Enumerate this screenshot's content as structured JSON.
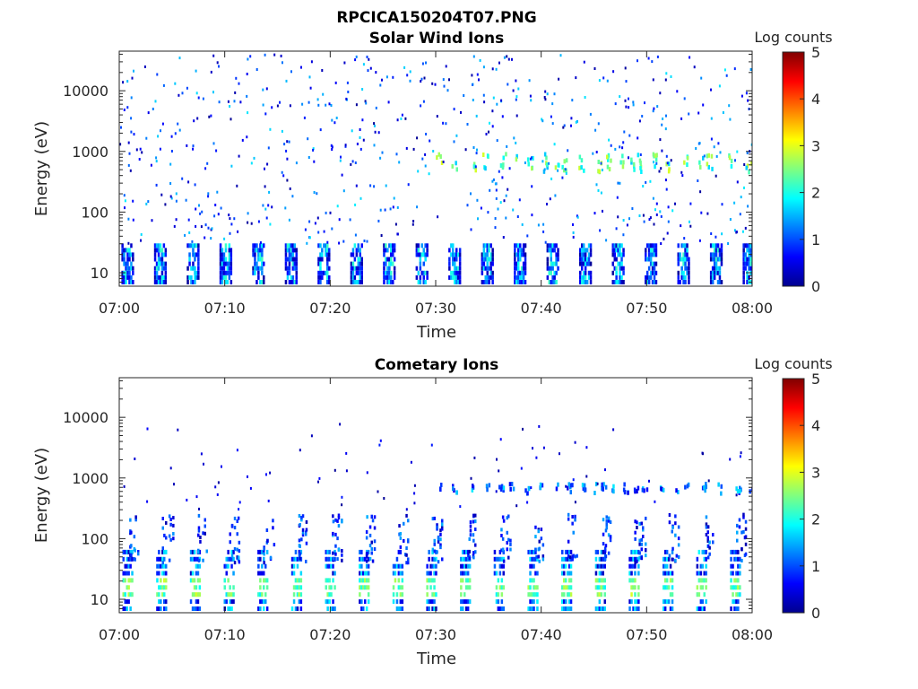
{
  "figure": {
    "main_title": "RPCICA150204T07.PNG"
  },
  "colorbar": {
    "label": "Log counts",
    "ticks": [
      "0",
      "1",
      "2",
      "3",
      "4",
      "5"
    ],
    "range": [
      0,
      5
    ],
    "colormap": "jet"
  },
  "panels": [
    {
      "title": "Solar Wind Ions",
      "xlabel": "Time",
      "ylabel": "Energy (eV)",
      "xticks": [
        "07:00",
        "07:10",
        "07:20",
        "07:30",
        "07:40",
        "07:50",
        "08:00"
      ],
      "yticks": [
        "10",
        "100",
        "1000",
        "10000"
      ]
    },
    {
      "title": "Cometary Ions",
      "xlabel": "Time",
      "ylabel": "Energy (eV)",
      "xticks": [
        "07:00",
        "07:10",
        "07:20",
        "07:30",
        "07:40",
        "07:50",
        "08:00"
      ],
      "yticks": [
        "10",
        "100",
        "1000",
        "10000"
      ]
    }
  ],
  "chart_data": [
    {
      "type": "heatmap",
      "title": "Solar Wind Ions",
      "xlabel": "Time",
      "ylabel": "Energy (eV)",
      "x_range": [
        "07:00",
        "08:00"
      ],
      "y_range_eV": [
        6,
        45000
      ],
      "y_scale": "log",
      "z_label": "Log counts",
      "z_range": [
        0,
        5
      ],
      "features": {
        "low_energy_bursts": {
          "energy_eV": [
            7,
            28
          ],
          "log_counts": [
            0.3,
            2.2
          ],
          "period_min": 3.1,
          "start_min": 0.2,
          "burst_width_min": 1.2
        },
        "peak_1000eV_band": {
          "start_min": 30,
          "energy_eV": [
            450,
            900
          ],
          "log_counts": [
            1.5,
            3.0
          ]
        },
        "sparse_scatter": {
          "energy_eV": [
            30,
            40000
          ],
          "log_counts": [
            0.1,
            1.8
          ]
        }
      }
    },
    {
      "type": "heatmap",
      "title": "Cometary Ions",
      "xlabel": "Time",
      "ylabel": "Energy (eV)",
      "x_range": [
        "07:00",
        "08:00"
      ],
      "y_range_eV": [
        6,
        45000
      ],
      "y_scale": "log",
      "z_label": "Log counts",
      "z_range": [
        0,
        5
      ],
      "features": {
        "low_energy_bursts": {
          "energy_eV": [
            7,
            60
          ],
          "core_energy_eV": [
            11,
            25
          ],
          "core_log_counts": [
            2.5,
            3.0
          ],
          "period_min": 3.2,
          "start_min": 0.3,
          "burst_width_min": 1.0
        },
        "mid_energy_plumes": {
          "energy_eV": [
            40,
            250
          ],
          "log_counts": [
            0.2,
            1.5
          ]
        },
        "peak_600eV_band": {
          "start_min": 30,
          "energy_eV": [
            550,
            800
          ],
          "log_counts": [
            0.5,
            1.8
          ]
        },
        "sparse_scatter": {
          "energy_eV": [
            300,
            8000
          ],
          "log_counts": [
            0.1,
            0.8
          ]
        }
      }
    }
  ]
}
